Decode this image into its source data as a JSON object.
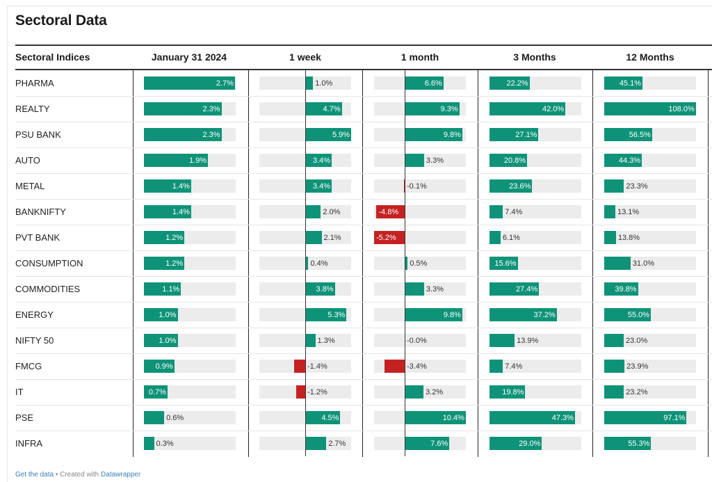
{
  "title": "Sectoral Data",
  "footer": {
    "get_data": "Get the data",
    "sep": " • Created with ",
    "tool": "Datawrapper"
  },
  "chart_data": {
    "type": "table",
    "columns": [
      "Sectoral Indices",
      "January 31 2024",
      "1 week",
      "1 month",
      "3 Months",
      "12 Months"
    ],
    "colors": {
      "positive": "#0f9378",
      "negative": "#c42222",
      "track": "#ececec"
    },
    "rows": [
      {
        "name": "PHARMA",
        "values": [
          2.7,
          1.0,
          6.6,
          22.2,
          45.1
        ],
        "labels": [
          "2.7%",
          "1.0%",
          "6.6%",
          "22.2%",
          "45.1%"
        ]
      },
      {
        "name": "REALTY",
        "values": [
          2.3,
          4.7,
          9.3,
          42.0,
          108.0
        ],
        "labels": [
          "2.3%",
          "4.7%",
          "9.3%",
          "42.0%",
          "108.0%"
        ]
      },
      {
        "name": "PSU BANK",
        "values": [
          2.3,
          5.9,
          9.8,
          27.1,
          56.5
        ],
        "labels": [
          "2.3%",
          "5.9%",
          "9.8%",
          "27.1%",
          "56.5%"
        ]
      },
      {
        "name": "AUTO",
        "values": [
          1.9,
          3.4,
          3.3,
          20.8,
          44.3
        ],
        "labels": [
          "1.9%",
          "3.4%",
          "3.3%",
          "20.8%",
          "44.3%"
        ]
      },
      {
        "name": "METAL",
        "values": [
          1.4,
          3.4,
          -0.1,
          23.6,
          23.3
        ],
        "labels": [
          "1.4%",
          "3.4%",
          "-0.1%",
          "23.6%",
          "23.3%"
        ]
      },
      {
        "name": "BANKNIFTY",
        "values": [
          1.4,
          2.0,
          -4.8,
          7.4,
          13.1
        ],
        "labels": [
          "1.4%",
          "2.0%",
          "-4.8%",
          "7.4%",
          "13.1%"
        ]
      },
      {
        "name": "PVT BANK",
        "values": [
          1.2,
          2.1,
          -5.2,
          6.1,
          13.8
        ],
        "labels": [
          "1.2%",
          "2.1%",
          "-5.2%",
          "6.1%",
          "13.8%"
        ]
      },
      {
        "name": "CONSUMPTION",
        "values": [
          1.2,
          0.4,
          0.5,
          15.6,
          31.0
        ],
        "labels": [
          "1.2%",
          "0.4%",
          "0.5%",
          "15.6%",
          "31.0%"
        ]
      },
      {
        "name": "COMMODITIES",
        "values": [
          1.1,
          3.8,
          3.3,
          27.4,
          39.8
        ],
        "labels": [
          "1.1%",
          "3.8%",
          "3.3%",
          "27.4%",
          "39.8%"
        ]
      },
      {
        "name": "ENERGY",
        "values": [
          1.0,
          5.3,
          9.8,
          37.2,
          55.0
        ],
        "labels": [
          "1.0%",
          "5.3%",
          "9.8%",
          "37.2%",
          "55.0%"
        ]
      },
      {
        "name": "NIFTY 50",
        "values": [
          1.0,
          1.3,
          -0.0,
          13.9,
          23.0
        ],
        "labels": [
          "1.0%",
          "1.3%",
          "-0.0%",
          "13.9%",
          "23.0%"
        ]
      },
      {
        "name": "FMCG",
        "values": [
          0.9,
          -1.4,
          -3.4,
          7.4,
          23.9
        ],
        "labels": [
          "0.9%",
          "-1.4%",
          "-3.4%",
          "7.4%",
          "23.9%"
        ]
      },
      {
        "name": "IT",
        "values": [
          0.7,
          -1.2,
          3.2,
          19.8,
          23.2
        ],
        "labels": [
          "0.7%",
          "-1.2%",
          "3.2%",
          "19.8%",
          "23.2%"
        ]
      },
      {
        "name": "PSE",
        "values": [
          0.6,
          4.5,
          10.4,
          47.3,
          97.1
        ],
        "labels": [
          "0.6%",
          "4.5%",
          "10.4%",
          "47.3%",
          "97.1%"
        ]
      },
      {
        "name": "INFRA",
        "values": [
          0.3,
          2.7,
          7.6,
          29.0,
          55.3
        ],
        "labels": [
          "0.3%",
          "2.7%",
          "7.6%",
          "29.0%",
          "55.3%"
        ]
      }
    ]
  }
}
